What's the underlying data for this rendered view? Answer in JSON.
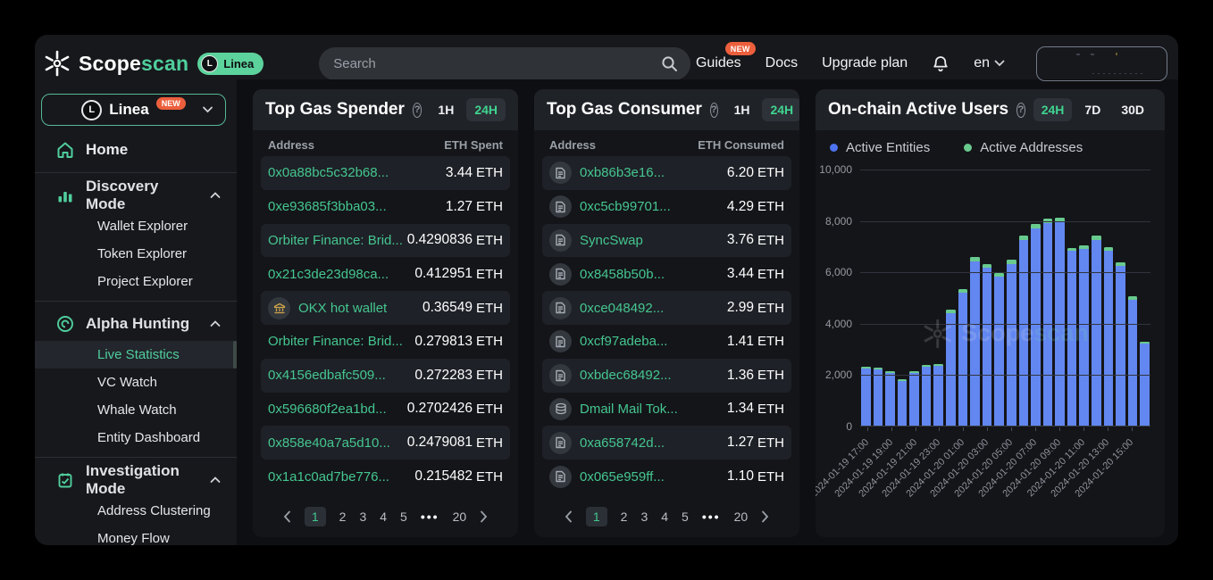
{
  "brand": {
    "name_primary": "Scope",
    "name_secondary": "scan",
    "network_badge": "Linea"
  },
  "topnav": {
    "search_placeholder": "Search",
    "guides_label": "Guides",
    "guides_badge": "NEW",
    "docs_label": "Docs",
    "upgrade_label": "Upgrade plan",
    "language": "en"
  },
  "sidebar": {
    "network_selector": {
      "label": "Linea",
      "badge": "NEW"
    },
    "sections": [
      {
        "type": "link",
        "label": "Home",
        "icon": "home-icon"
      },
      {
        "type": "group",
        "label": "Discovery Mode",
        "icon": "bar-chart-icon",
        "items": [
          "Wallet Explorer",
          "Token Explorer",
          "Project Explorer"
        ]
      },
      {
        "type": "group",
        "label": "Alpha Hunting",
        "icon": "target-icon",
        "items": [
          "Live Statistics",
          "VC Watch",
          "Whale Watch",
          "Entity Dashboard"
        ],
        "active_item": "Live Statistics"
      },
      {
        "type": "group",
        "label": "Investigation Mode",
        "icon": "clipboard-icon",
        "items": [
          "Address Clustering",
          "Money Flow"
        ]
      }
    ]
  },
  "panels": {
    "gas_spender": {
      "title": "Top Gas Spender",
      "time_filters": [
        "1H",
        "24H"
      ],
      "active_filter": "24H",
      "columns": [
        "Address",
        "ETH Spent"
      ],
      "rows": [
        {
          "address": "0x0a88bc5c32b68...",
          "value": "3.44",
          "unit": "ETH",
          "icon": null
        },
        {
          "address": "0xe93685f3bba03...",
          "value": "1.27",
          "unit": "ETH",
          "icon": null
        },
        {
          "address": "Orbiter Finance: Brid...",
          "value": "0.4290836",
          "unit": "ETH",
          "icon": null
        },
        {
          "address": "0x21c3de23d98ca...",
          "value": "0.412951",
          "unit": "ETH",
          "icon": null
        },
        {
          "address": "OKX hot wallet",
          "value": "0.36549",
          "unit": "ETH",
          "icon": "bank-icon"
        },
        {
          "address": "Orbiter Finance: Brid...",
          "value": "0.279813",
          "unit": "ETH",
          "icon": null
        },
        {
          "address": "0x4156edbafc509...",
          "value": "0.272283",
          "unit": "ETH",
          "icon": null
        },
        {
          "address": "0x596680f2ea1bd...",
          "value": "0.2702426",
          "unit": "ETH",
          "icon": null
        },
        {
          "address": "0x858e40a7a5d10...",
          "value": "0.2479081",
          "unit": "ETH",
          "icon": null
        },
        {
          "address": "0x1a1c0ad7be776...",
          "value": "0.215482",
          "unit": "ETH",
          "icon": null
        }
      ],
      "pagination": {
        "items": [
          "1",
          "2",
          "3",
          "4",
          "5",
          "•••",
          "20"
        ],
        "active": "1"
      }
    },
    "gas_consumer": {
      "title": "Top Gas Consumer",
      "time_filters": [
        "1H",
        "24H"
      ],
      "active_filter": "24H",
      "columns": [
        "Address",
        "ETH Consumed"
      ],
      "rows": [
        {
          "address": "0xb86b3e16...",
          "value": "6.20",
          "unit": "ETH",
          "icon": "doc-icon"
        },
        {
          "address": "0xc5cb99701...",
          "value": "4.29",
          "unit": "ETH",
          "icon": "doc-icon"
        },
        {
          "address": "SyncSwap",
          "value": "3.76",
          "unit": "ETH",
          "icon": "doc-icon"
        },
        {
          "address": "0x8458b50b...",
          "value": "3.44",
          "unit": "ETH",
          "icon": "doc-icon"
        },
        {
          "address": "0xce048492...",
          "value": "2.99",
          "unit": "ETH",
          "icon": "doc-icon"
        },
        {
          "address": "0xcf97adeba...",
          "value": "1.41",
          "unit": "ETH",
          "icon": "doc-icon"
        },
        {
          "address": "0xbdec68492...",
          "value": "1.36",
          "unit": "ETH",
          "icon": "doc-icon"
        },
        {
          "address": "Dmail Mail Tok...",
          "value": "1.34",
          "unit": "ETH",
          "icon": "coins-icon"
        },
        {
          "address": "0xa658742d...",
          "value": "1.27",
          "unit": "ETH",
          "icon": "doc-icon"
        },
        {
          "address": "0x065e959ff...",
          "value": "1.10",
          "unit": "ETH",
          "icon": "doc-icon"
        }
      ],
      "pagination": {
        "items": [
          "1",
          "2",
          "3",
          "4",
          "5",
          "•••",
          "20"
        ],
        "active": "1"
      }
    },
    "active_users": {
      "title": "On-chain Active Users",
      "time_filters": [
        "24H",
        "7D",
        "30D"
      ],
      "active_filter": "24H",
      "legend": [
        {
          "label": "Active Entities",
          "color": "#4d74ee"
        },
        {
          "label": "Active Addresses",
          "color": "#68ca8e"
        }
      ]
    }
  },
  "chart_data": {
    "type": "bar",
    "stacked": true,
    "title": "On-chain Active Users",
    "x": [
      "2024-01-19 17:00",
      "2024-01-19 18:00",
      "2024-01-19 19:00",
      "2024-01-19 20:00",
      "2024-01-19 21:00",
      "2024-01-19 22:00",
      "2024-01-19 23:00",
      "2024-01-20 00:00",
      "2024-01-20 01:00",
      "2024-01-20 02:00",
      "2024-01-20 03:00",
      "2024-01-20 04:00",
      "2024-01-20 05:00",
      "2024-01-20 06:00",
      "2024-01-20 07:00",
      "2024-01-20 08:00",
      "2024-01-20 09:00",
      "2024-01-20 10:00",
      "2024-01-20 11:00",
      "2024-01-20 12:00",
      "2024-01-20 13:00",
      "2024-01-20 14:00",
      "2024-01-20 15:00",
      "2024-01-20 16:00"
    ],
    "x_tick_labels": [
      "2024-01-19 17:00",
      "2024-01-19 19:00",
      "2024-01-19 21:00",
      "2024-01-19 23:00",
      "2024-01-20 01:00",
      "2024-01-20 03:00",
      "2024-01-20 05:00",
      "2024-01-20 07:00",
      "2024-01-20 09:00",
      "2024-01-20 11:00",
      "2024-01-20 13:00",
      "2024-01-20 15:00"
    ],
    "series": [
      {
        "name": "Active Entities",
        "color": "#6287f0",
        "values": [
          2240,
          2190,
          2040,
          1750,
          2040,
          2280,
          2330,
          4360,
          5160,
          6380,
          6140,
          5800,
          6300,
          7230,
          7680,
          7880,
          7930,
          6790,
          6890,
          7240,
          6820,
          6220,
          4910,
          3200
        ]
      },
      {
        "name": "Active Addresses",
        "color": "#68ca8e",
        "values": [
          2300,
          2250,
          2100,
          1800,
          2100,
          2350,
          2400,
          4500,
          5300,
          6550,
          6300,
          5950,
          6450,
          7400,
          7850,
          8050,
          8100,
          6900,
          7000,
          7400,
          6950,
          6350,
          5050,
          3250
        ]
      }
    ],
    "ylim": [
      0,
      10000
    ],
    "yticks": [
      0,
      2000,
      4000,
      6000,
      8000,
      10000
    ],
    "ytick_labels": [
      "0",
      "2,000",
      "4,000",
      "6,000",
      "8,000",
      "10,000"
    ],
    "legend_position": "top-left",
    "grid": true
  }
}
